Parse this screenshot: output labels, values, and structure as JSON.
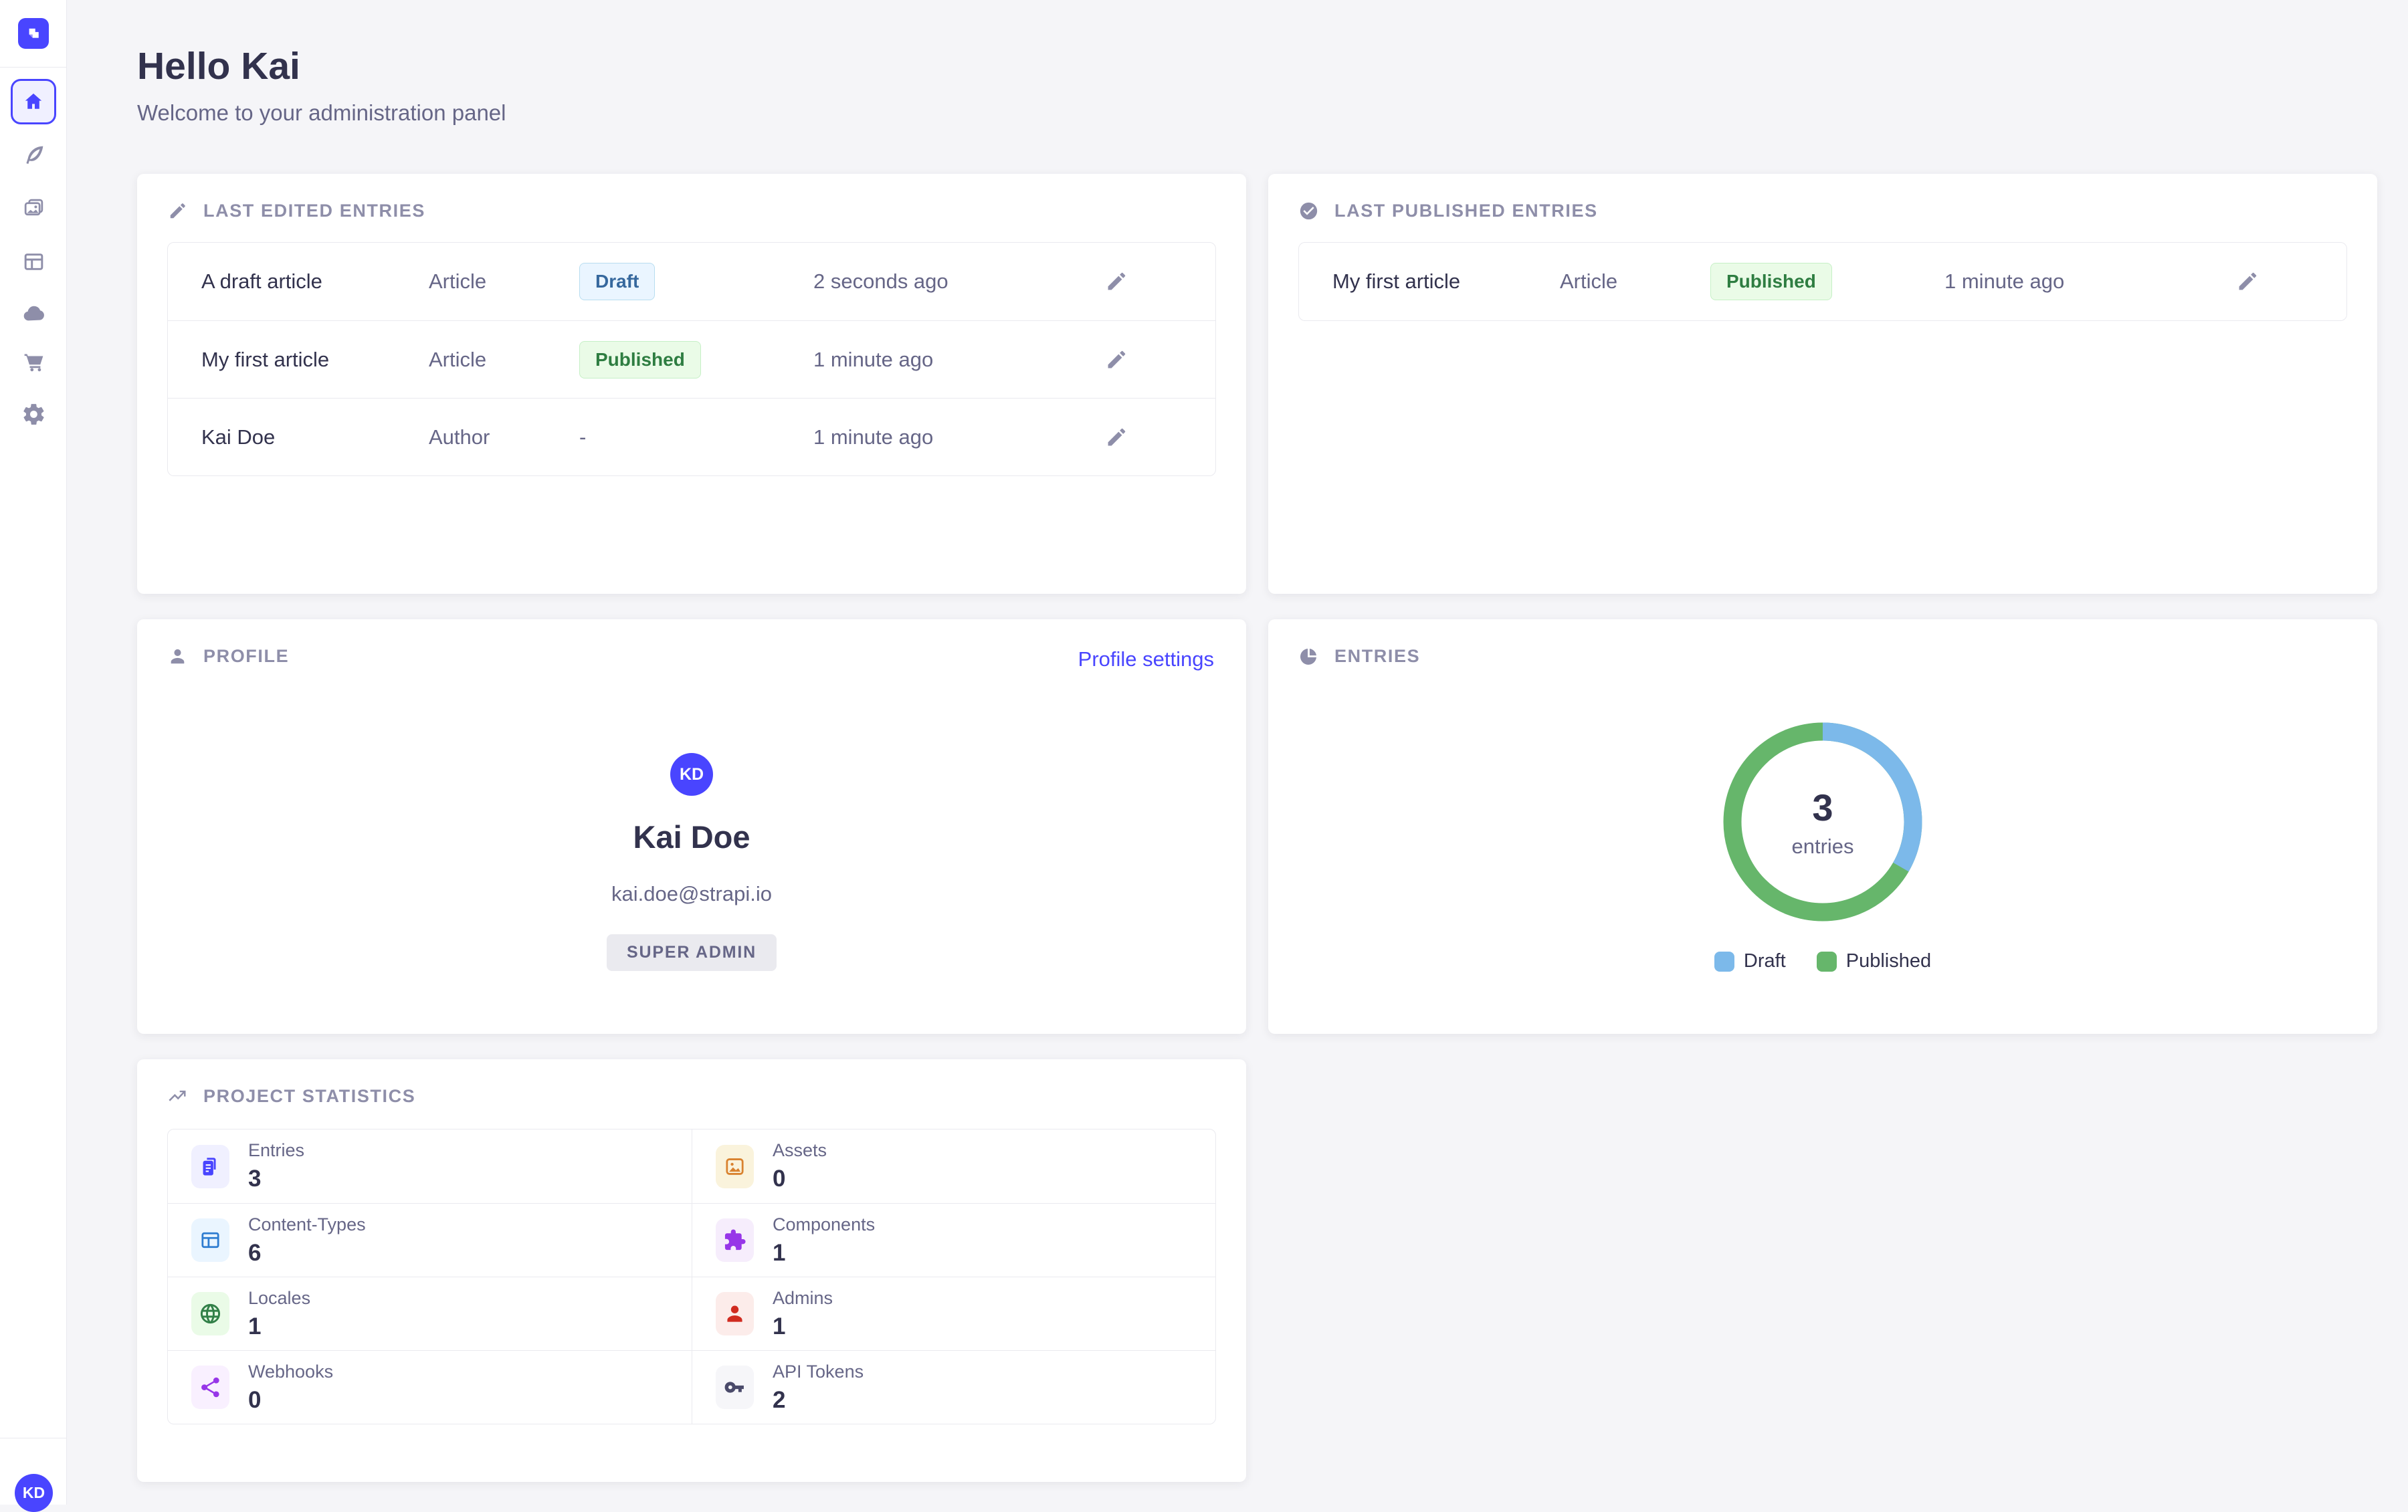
{
  "colors": {
    "accent": "#4945FF",
    "page_bg": "#F5F5F8",
    "text_dark": "#32324D",
    "text_gray": "#666687",
    "icon_gray": "#8E8EA9",
    "draft_badge": {
      "bg": "#EAF5FF",
      "border": "#B8DDF0",
      "text": "#36689D"
    },
    "published_badge": {
      "bg": "#EAFBE7",
      "border": "#C6F0C6",
      "text": "#2E7D41"
    }
  },
  "header": {
    "title": "Hello Kai",
    "subtitle": "Welcome to your administration panel"
  },
  "sidebar": {
    "logo_icon": "strapi-logo",
    "items": [
      {
        "name": "home",
        "icon": "home-icon",
        "active": true
      },
      {
        "name": "content-manager",
        "icon": "feather-icon"
      },
      {
        "name": "media-library",
        "icon": "images-icon"
      },
      {
        "name": "content-type-builder",
        "icon": "layout-icon"
      },
      {
        "name": "deploy",
        "icon": "cloud-icon"
      },
      {
        "name": "marketplace",
        "icon": "cart-icon"
      },
      {
        "name": "settings",
        "icon": "gear-icon"
      }
    ],
    "avatar_initials": "KD"
  },
  "cards": {
    "last_edited": {
      "title": "LAST EDITED ENTRIES",
      "icon": "pencil-icon",
      "rows": [
        {
          "title": "A draft article",
          "type": "Article",
          "status": "Draft",
          "status_kind": "draft",
          "time": "2 seconds ago"
        },
        {
          "title": "My first article",
          "type": "Article",
          "status": "Published",
          "status_kind": "published",
          "time": "1 minute ago"
        },
        {
          "title": "Kai Doe",
          "type": "Author",
          "status": "-",
          "status_kind": "none",
          "time": "1 minute ago"
        }
      ]
    },
    "last_published": {
      "title": "LAST PUBLISHED ENTRIES",
      "icon": "check-circle-icon",
      "rows": [
        {
          "title": "My first article",
          "type": "Article",
          "status": "Published",
          "status_kind": "published",
          "time": "1 minute ago"
        }
      ]
    },
    "profile": {
      "title": "PROFILE",
      "icon": "user-icon",
      "link": "Profile settings",
      "avatar_initials": "KD",
      "name": "Kai Doe",
      "email": "kai.doe@strapi.io",
      "role": "SUPER ADMIN"
    },
    "entries": {
      "title": "ENTRIES",
      "icon": "pie-icon",
      "total": "3",
      "unit": "entries",
      "legend": [
        {
          "label": "Draft",
          "color": "#7CB9EA"
        },
        {
          "label": "Published",
          "color": "#66B66B"
        }
      ]
    },
    "stats": {
      "title": "PROJECT STATISTICS",
      "icon": "trend-icon",
      "items": [
        {
          "label": "Entries",
          "value": "3",
          "icon": "docs-icon",
          "tile_bg": "#F0F0FF",
          "icon_color": "#4945FF"
        },
        {
          "label": "Assets",
          "value": "0",
          "icon": "picture-icon",
          "tile_bg": "#FAF3DC",
          "icon_color": "#D9822F"
        },
        {
          "label": "Content-Types",
          "value": "6",
          "icon": "layout-icon",
          "tile_bg": "#EAF5FF",
          "icon_color": "#2E7CD0"
        },
        {
          "label": "Components",
          "value": "1",
          "icon": "puzzle-icon",
          "tile_bg": "#F6EDFC",
          "icon_color": "#9736E8"
        },
        {
          "label": "Locales",
          "value": "1",
          "icon": "globe-icon",
          "tile_bg": "#EAFBE7",
          "icon_color": "#328048"
        },
        {
          "label": "Admins",
          "value": "1",
          "icon": "admin-user-icon",
          "tile_bg": "#FCECEA",
          "icon_color": "#D02B20"
        },
        {
          "label": "Webhooks",
          "value": "0",
          "icon": "webhook-icon",
          "tile_bg": "#F9F0FF",
          "icon_color": "#9736E8"
        },
        {
          "label": "API Tokens",
          "value": "2",
          "icon": "key-icon",
          "tile_bg": "#F6F6F9",
          "icon_color": "#4A4A6A"
        }
      ]
    }
  },
  "chart_data": {
    "type": "pie",
    "title": "ENTRIES",
    "categories": [
      "Draft",
      "Published"
    ],
    "values": [
      1,
      2
    ],
    "colors": [
      "#7CB9EA",
      "#66B66B"
    ],
    "center_label": "3 entries",
    "legend_position": "bottom"
  }
}
